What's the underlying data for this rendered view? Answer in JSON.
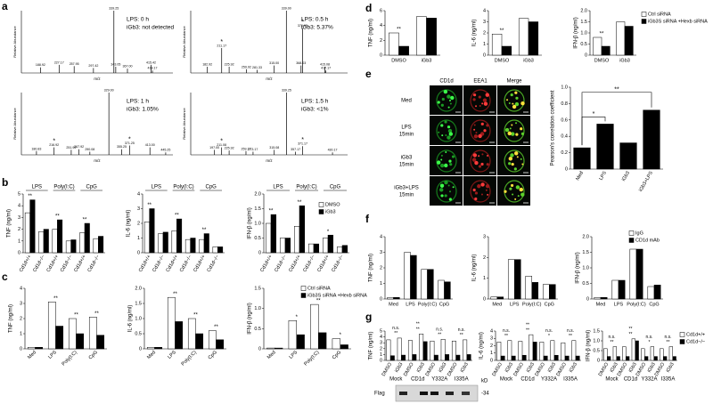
{
  "panels": {
    "a": {
      "letter": "a",
      "y_label": "Relative Abundance",
      "x_label": "m/z",
      "xlim": [
        150,
        460
      ],
      "ylim": [
        0,
        100
      ],
      "spectra": [
        {
          "lines": [
            "LPS: 0 h",
            "iGb3: not detected"
          ],
          "peaks": [
            {
              "value": 188.92,
              "label": "188.92",
              "abundance": 9
            },
            {
              "value": 227.17,
              "label": "227.17",
              "abundance": 13
            },
            {
              "value": 257.95,
              "label": "257.95",
              "abundance": 11
            },
            {
              "value": 297.42,
              "label": "297.42",
              "abundance": 8
            },
            {
              "value": 339.25,
              "label": "339.25",
              "abundance": 100
            },
            {
              "value": 343.05,
              "label": "343.05",
              "abundance": 10
            },
            {
              "value": 367.0,
              "label": "367.00",
              "abundance": 7
            },
            {
              "value": 415.42,
              "label": "415.42",
              "abundance": 13
            },
            {
              "value": 418.17,
              "label": "418.17",
              "abundance": 4
            }
          ]
        },
        {
          "lines": [
            "LPS: 0.5 h",
            "iGb3: 5.37%"
          ],
          "peaks": [
            {
              "value": 182.92,
              "label": "182.92",
              "abundance": 10
            },
            {
              "value": 211.17,
              "label": "211.17",
              "abundance": 40,
              "note": "*"
            },
            {
              "value": 225.92,
              "label": "225.92",
              "abundance": 10
            },
            {
              "value": 259.92,
              "label": "259.92",
              "abundance": 6
            },
            {
              "value": 281.33,
              "label": "281.33",
              "abundance": 5
            },
            {
              "value": 315.0,
              "label": "315.00",
              "abundance": 12
            },
            {
              "value": 339.0,
              "label": "339.00",
              "abundance": 100
            },
            {
              "value": 368.03,
              "label": "368.03",
              "abundance": 12
            },
            {
              "value": 370.92,
              "label": "370.92",
              "abundance": 72,
              "note": "*"
            },
            {
              "value": 415.08,
              "label": "415.08",
              "abundance": 10
            },
            {
              "value": 417.17,
              "label": "417.17",
              "abundance": 4
            }
          ]
        },
        {
          "lines": [
            "LPS: 1 h",
            "iGb3: 1.05%"
          ],
          "peaks": [
            {
              "value": 180.83,
              "label": "180.83",
              "abundance": 6
            },
            {
              "value": 216.92,
              "label": "216.92",
              "abundance": 12,
              "note": "*"
            },
            {
              "value": 251.95,
              "label": "251.95",
              "abundance": 8
            },
            {
              "value": 267.92,
              "label": "267.92",
              "abundance": 9
            },
            {
              "value": 290.08,
              "label": "290.08",
              "abundance": 5
            },
            {
              "value": 329.0,
              "label": "329.00",
              "abundance": 100
            },
            {
              "value": 355.25,
              "label": "355.25",
              "abundance": 9
            },
            {
              "value": 371.25,
              "label": "371.25",
              "abundance": 15,
              "note": "*"
            },
            {
              "value": 413.0,
              "label": "413.00",
              "abundance": 12
            },
            {
              "value": 445.25,
              "label": "445.25",
              "abundance": 4
            }
          ]
        },
        {
          "lines": [
            "LPS: 1.5 h",
            "iGb3: <1%"
          ],
          "peaks": [
            {
              "value": 197.0,
              "label": "197.00",
              "abundance": 8
            },
            {
              "value": 211.08,
              "label": "211.08",
              "abundance": 12,
              "note": "*"
            },
            {
              "value": 225.92,
              "label": "225.92",
              "abundance": 7
            },
            {
              "value": 259.17,
              "label": "259.17",
              "abundance": 6
            },
            {
              "value": 273.17,
              "label": "273.17",
              "abundance": 5
            },
            {
              "value": 315.08,
              "label": "315.08",
              "abundance": 8
            },
            {
              "value": 339.25,
              "label": "339.25",
              "abundance": 100
            },
            {
              "value": 357.17,
              "label": "357.17",
              "abundance": 5
            },
            {
              "value": 371.17,
              "label": "371.17",
              "abundance": 14,
              "note": "*"
            },
            {
              "value": 430.17,
              "label": "430.17",
              "abundance": 4
            }
          ]
        }
      ]
    },
    "b": {
      "letter": "b",
      "series": [
        {
          "name": "DMSO",
          "color": "#ffffff"
        },
        {
          "name": "iGb3",
          "color": "#000000"
        }
      ],
      "groups": [
        "LPS",
        "Poly(I:C)",
        "CpG"
      ],
      "categories": [
        "Cd1d+/+",
        "Cd1d−/−",
        "Cd1d+/+",
        "Cd1d−/−",
        "Cd1d+/+",
        "Cd1d−/−"
      ],
      "charts": [
        {
          "y_label": "TNF (ng/ml)",
          "ylim": [
            0,
            5
          ],
          "yticks": [
            0,
            1,
            2,
            3,
            4,
            5
          ],
          "values": [
            [
              3.4,
              1.8,
              2.0,
              1.0,
              1.7,
              1.2
            ],
            [
              4.5,
              2.0,
              2.8,
              1.1,
              2.5,
              1.4
            ]
          ],
          "sig": [
            "**",
            null,
            "**",
            null,
            "**",
            null
          ]
        },
        {
          "y_label": "IL-6 (ng/ml)",
          "ylim": [
            0,
            4
          ],
          "yticks": [
            0,
            1,
            2,
            3,
            4
          ],
          "values": [
            [
              2.1,
              1.3,
              1.5,
              0.9,
              0.9,
              0.4
            ],
            [
              3.0,
              1.4,
              2.3,
              1.0,
              1.3,
              0.4
            ]
          ],
          "sig": [
            "**",
            null,
            "**",
            null,
            "**",
            null
          ]
        },
        {
          "y_label": "IFN-β (ng/ml)",
          "ylim": [
            0,
            2
          ],
          "yticks": [
            0,
            0.5,
            {
              "value": 1,
              "label": "1.0"
            },
            1.5,
            {
              "value": 2,
              "label": "2.0"
            }
          ],
          "values": [
            [
              1.0,
              0.5,
              0.9,
              0.3,
              0.5,
              0.2
            ],
            [
              1.3,
              0.5,
              1.6,
              0.3,
              0.6,
              0.25
            ]
          ],
          "sig": [
            "**",
            null,
            "**",
            null,
            "*",
            null
          ]
        }
      ]
    },
    "c": {
      "letter": "c",
      "series": [
        {
          "name": "Ctrl siRNA",
          "color": "#ffffff"
        },
        {
          "name": "iGb3S siRNA +Hexb siRNA",
          "color": "#000000"
        }
      ],
      "categories": [
        "Med",
        "LPS",
        "Poly(I:C)",
        "CpG"
      ],
      "charts": [
        {
          "y_label": "TNF (ng/ml)",
          "ylim": [
            0,
            4
          ],
          "yticks": [
            0,
            1,
            2,
            3,
            4
          ],
          "values": [
            [
              0.1,
              3.1,
              2.0,
              2.1
            ],
            [
              0.1,
              1.5,
              1.0,
              0.9
            ]
          ],
          "sig": [
            null,
            "**",
            "**",
            "**"
          ]
        },
        {
          "y_label": "IL-6 (ng/ml)",
          "ylim": [
            0,
            2
          ],
          "yticks": [
            0,
            0.5,
            {
              "value": 1,
              "label": "1.0"
            },
            1.5,
            {
              "value": 2,
              "label": "2.0"
            }
          ],
          "values": [
            [
              0.05,
              1.7,
              1.0,
              0.6
            ],
            [
              0.05,
              0.9,
              0.5,
              0.3
            ]
          ],
          "sig": [
            null,
            "**",
            "**",
            "**"
          ]
        },
        {
          "y_label": "IFN-β (ng/ml)",
          "ylim": [
            0,
            1.5
          ],
          "yticks": [
            0,
            0.5,
            {
              "value": 1,
              "label": "1.0"
            },
            1.5
          ],
          "values": [
            [
              0.02,
              0.7,
              1.1,
              0.25
            ],
            [
              0.02,
              0.35,
              0.4,
              0.1
            ]
          ],
          "sig": [
            null,
            "*",
            "**",
            "*"
          ]
        }
      ]
    },
    "d": {
      "letter": "d",
      "series": [
        {
          "name": "Ctrl siRNA",
          "color": "#ffffff"
        },
        {
          "name": "iGb3S siRNA +Hexb siRNA",
          "color": "#000000"
        }
      ],
      "categories": [
        "DMSO",
        "iGb3"
      ],
      "charts": [
        {
          "y_label": "TNF (ng/ml)",
          "ylim": [
            0,
            6
          ],
          "yticks": [
            0,
            2,
            4,
            6
          ],
          "values": [
            [
              3.0,
              5.2
            ],
            [
              1.2,
              5.0
            ]
          ],
          "sig": [
            "**",
            null
          ]
        },
        {
          "y_label": "IL-6 (ng/ml)",
          "ylim": [
            0,
            4
          ],
          "yticks": [
            0,
            1,
            2,
            3,
            4
          ],
          "values": [
            [
              1.9,
              3.3
            ],
            [
              0.8,
              3.0
            ]
          ],
          "sig": [
            "**",
            null
          ]
        },
        {
          "y_label": "IFN-β (ng/ml)",
          "ylim": [
            0,
            2
          ],
          "yticks": [
            0,
            0.5,
            {
              "value": 1,
              "label": "1.0"
            },
            1.5,
            {
              "value": 2,
              "label": "2.0"
            }
          ],
          "values": [
            [
              0.8,
              1.5
            ],
            [
              0.4,
              1.3
            ]
          ],
          "sig": [
            "**",
            null
          ]
        }
      ]
    },
    "e": {
      "letter": "e",
      "columns": [
        "CD1d",
        "EEA1",
        "Merge"
      ],
      "rows": [
        [
          "Med"
        ],
        [
          "LPS",
          "15min"
        ],
        [
          "iGb3",
          "15min"
        ],
        [
          "iGb3+LPS",
          "15min"
        ]
      ],
      "series": [
        {
          "color": "#000000"
        }
      ],
      "categories": [
        "Med",
        "LPS",
        "iGb3",
        "iGb3+LPS"
      ],
      "charts": [
        {
          "y_label": "Pearson's correlation coefficient",
          "ylim": [
            0,
            1
          ],
          "yticks": [
            0,
            0.2,
            0.4,
            0.6,
            0.8,
            {
              "value": 1,
              "label": "1.0"
            }
          ],
          "values": [
            [
              0.26,
              0.55,
              0.32,
              0.72
            ]
          ],
          "sig": [
            null,
            "*",
            null,
            "**"
          ]
        }
      ]
    },
    "f": {
      "letter": "f",
      "series": [
        {
          "name": "IgG",
          "color": "#ffffff"
        },
        {
          "name": "CD1d mAb",
          "color": "#000000"
        }
      ],
      "categories": [
        "Med",
        "LPS",
        "Poly(I:C)",
        "CpG"
      ],
      "charts": [
        {
          "y_label": "TNF (ng/ml)",
          "ylim": [
            0,
            4
          ],
          "yticks": [
            0,
            1,
            2,
            3,
            4
          ],
          "values": [
            [
              0.1,
              3.0,
              1.9,
              1.2
            ],
            [
              0.1,
              2.8,
              1.9,
              1.1
            ]
          ]
        },
        {
          "y_label": "IL-6 (ng/ml)",
          "ylim": [
            0,
            3
          ],
          "yticks": [
            0,
            1,
            2,
            3
          ],
          "values": [
            [
              0.1,
              1.9,
              1.1,
              0.7
            ],
            [
              0.1,
              1.9,
              0.8,
              0.7
            ]
          ]
        },
        {
          "y_label": "IFN-β (ng/ml)",
          "ylim": [
            0,
            2
          ],
          "yticks": [
            0,
            0.5,
            {
              "value": 1,
              "label": "1.0"
            },
            1.5,
            {
              "value": 2,
              "label": "2.0"
            }
          ],
          "values": [
            [
              0.05,
              0.6,
              1.6,
              0.4
            ],
            [
              0.05,
              0.6,
              1.6,
              0.45
            ]
          ]
        }
      ]
    },
    "g": {
      "letter": "g",
      "series": [
        {
          "name": "Cd1d+/+",
          "color": "#ffffff"
        },
        {
          "name": "Cd1d−/−",
          "color": "#000000"
        }
      ],
      "groups": [
        "Mock",
        "CD1d",
        "Y332A",
        "I335A"
      ],
      "categories": [
        "DMSO",
        "iGb3",
        "DMSO",
        "iGb3",
        "DMSO",
        "iGb3",
        "DMSO",
        "iGb3"
      ],
      "charts": [
        {
          "y_label": "TNF (ng/ml)",
          "ylim": [
            0,
            5
          ],
          "yticks": [
            0,
            1,
            2,
            3,
            4,
            5
          ],
          "values": [
            [
              3.5,
              3.8,
              3.4,
              4.5,
              3.3,
              3.6,
              3.3,
              3.5
            ],
            [
              0.8,
              0.9,
              1.0,
              3.2,
              0.9,
              1.0,
              0.9,
              1.0
            ]
          ],
          "group_sig": [
            [
              "n.s.",
              "**"
            ],
            [
              "**",
              "**"
            ],
            [
              "n.s.",
              "**"
            ],
            [
              "n.s.",
              "**"
            ]
          ]
        },
        {
          "y_label": "IL-6 (ng/ml)",
          "ylim": [
            0,
            4
          ],
          "yticks": [
            0,
            1,
            2,
            3,
            4
          ],
          "values": [
            [
              2.5,
              2.7,
              2.6,
              3.5,
              2.5,
              2.7,
              2.4,
              2.7
            ],
            [
              0.6,
              0.6,
              0.7,
              2.5,
              0.6,
              0.7,
              0.6,
              0.6
            ]
          ],
          "group_sig": [
            [
              "n.s.",
              "**"
            ],
            [
              "**",
              "**"
            ],
            [
              "n.s.",
              "*"
            ],
            [
              "n.s.",
              "**"
            ]
          ]
        },
        {
          "y_label": "IFN-β (ng/ml)",
          "ylim": [
            0,
            1.5
          ],
          "yticks": [
            0,
            0.5,
            {
              "value": 1,
              "label": "1.0"
            },
            1.5
          ],
          "values": [
            [
              0.6,
              0.7,
              0.7,
              1.1,
              0.6,
              0.7,
              0.6,
              0.7
            ],
            [
              0.2,
              0.2,
              0.2,
              1.0,
              0.2,
              0.2,
              0.2,
              0.2
            ]
          ],
          "group_sig": [
            [
              "n.s.",
              "**"
            ],
            [
              "**",
              "**"
            ],
            [
              "n.s.",
              "*"
            ],
            [
              "n.s.",
              "**"
            ]
          ]
        }
      ],
      "blot": {
        "label": "Flag",
        "unit": "kD",
        "marker": "-34"
      }
    }
  }
}
